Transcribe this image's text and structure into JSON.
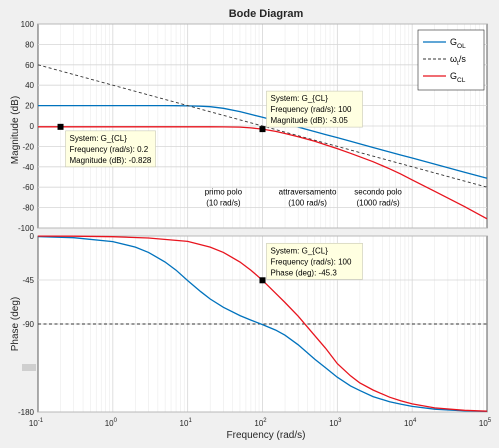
{
  "figure": {
    "title": "Bode Diagram"
  },
  "chart_data": {
    "type": "line",
    "title": "Bode Diagram",
    "xscale": "log",
    "xlabel": "Frequency  (rad/s)",
    "xlim": [
      0.1,
      100000
    ],
    "x_ticks": [
      {
        "v": 0.1,
        "base": "10",
        "exp": "-1"
      },
      {
        "v": 1,
        "base": "10",
        "exp": "0"
      },
      {
        "v": 10,
        "base": "10",
        "exp": "1"
      },
      {
        "v": 100,
        "base": "10",
        "exp": "2"
      },
      {
        "v": 1000,
        "base": "10",
        "exp": "3"
      },
      {
        "v": 10000,
        "base": "10",
        "exp": "4"
      },
      {
        "v": 100000,
        "base": "10",
        "exp": "5"
      }
    ],
    "grid": true,
    "magnitude": {
      "ylabel": "Magnitude (dB)",
      "ylim": [
        -100,
        100
      ],
      "yticks": [
        "100",
        "80",
        "60",
        "40",
        "20",
        "0",
        "-20",
        "-40",
        "-60",
        "-80",
        "-100"
      ],
      "legend": {
        "placement": "top-right",
        "entries": [
          {
            "base": "G",
            "sub": "OL",
            "sup": "",
            "tail": "",
            "color": "#0072bd",
            "dash": false
          },
          {
            "base": "ω",
            "sub": "t",
            "sup": "",
            "tail": "/s",
            "color": "#333333",
            "dash": true
          },
          {
            "base": "G",
            "sub": "CL",
            "sup": "",
            "tail": "",
            "color": "#e8141e",
            "dash": false
          }
        ]
      },
      "series": [
        {
          "name": "G_OL",
          "color": "#0072bd",
          "x": [
            0.1,
            0.3,
            1,
            2,
            3,
            5,
            7,
            10,
            15,
            20,
            30,
            50,
            70,
            100,
            150,
            200,
            300,
            500,
            700,
            1000,
            1500,
            2000,
            3000,
            5000,
            7000,
            10000,
            20000,
            50000,
            100000
          ],
          "y": [
            20,
            20,
            20,
            19.99,
            19.99,
            19.97,
            19.9,
            19.7,
            19.4,
            18.9,
            17.4,
            14.1,
            11.4,
            8.5,
            5.1,
            2.5,
            -1.1,
            -5.5,
            -8.4,
            -11.4,
            -15,
            -17.5,
            -21.1,
            -25.5,
            -28.4,
            -31.4,
            -37.4,
            -45.3,
            -51.3
          ]
        },
        {
          "name": "ω_t/s",
          "color": "#333333",
          "dash": true,
          "x": [
            0.1,
            100000
          ],
          "y": [
            60,
            -60
          ]
        },
        {
          "name": "G_CL",
          "color": "#e8141e",
          "x": [
            0.1,
            0.3,
            1,
            3,
            10,
            20,
            30,
            50,
            70,
            100,
            150,
            200,
            300,
            500,
            700,
            1000,
            1500,
            2000,
            3000,
            5000,
            7000,
            10000,
            20000,
            50000,
            100000
          ],
          "y": [
            -0.83,
            -0.83,
            -0.83,
            -0.83,
            -0.83,
            -0.83,
            -0.85,
            -1.1,
            -1.9,
            -3.05,
            -5.3,
            -7.4,
            -10.6,
            -15.0,
            -18.5,
            -22.2,
            -26.8,
            -30.2,
            -35.0,
            -42.0,
            -47.0,
            -52.8,
            -64.0,
            -79.0,
            -91.0
          ]
        }
      ],
      "markers": [
        {
          "x": 0.2,
          "y": -0.828,
          "tip": [
            "System: G_{CL}",
            "Frequency (rad/s): 0.2",
            "Magnitude (dB): -0.828"
          ]
        },
        {
          "x": 100,
          "y": -3.05,
          "tip": [
            "System: G_{CL}",
            "Frequency (rad/s): 100",
            "Magnitude (dB): -3.05"
          ]
        }
      ],
      "annotations": [
        {
          "x": 30,
          "y": -67,
          "lines": [
            "primo polo",
            "(10 rad/s)"
          ]
        },
        {
          "x": 400,
          "y": -67,
          "lines": [
            "attraversamento",
            "(100 rad/s)"
          ]
        },
        {
          "x": 3500,
          "y": -67,
          "lines": [
            "secondo polo",
            "(1000 rad/s)"
          ]
        }
      ]
    },
    "phase": {
      "ylabel": "Phase (deg)",
      "ylim": [
        -180,
        0
      ],
      "yticks": [
        "0",
        "-45",
        "-90",
        "-180"
      ],
      "series": [
        {
          "name": "G_OL",
          "color": "#0072bd",
          "x": [
            0.1,
            0.3,
            1,
            2,
            3,
            5,
            7,
            10,
            15,
            20,
            30,
            50,
            70,
            100,
            150,
            200,
            300,
            500,
            700,
            1000,
            1500,
            2000,
            3000,
            5000,
            7000,
            10000,
            20000,
            50000,
            100000
          ],
          "y": [
            -0.6,
            -1.7,
            -5.7,
            -11.4,
            -16.8,
            -26.6,
            -35,
            -45.6,
            -57,
            -64.4,
            -72.9,
            -81.4,
            -86,
            -90.6,
            -96.2,
            -101.5,
            -111.3,
            -126,
            -134.9,
            -144.4,
            -153.3,
            -158.1,
            -164.3,
            -169.6,
            -171.9,
            -174.3,
            -177.1,
            -178.9,
            -179.4
          ]
        },
        {
          "name": "G_CL",
          "color": "#e8141e",
          "x": [
            0.1,
            0.3,
            1,
            3,
            10,
            20,
            30,
            50,
            70,
            100,
            150,
            200,
            300,
            500,
            700,
            1000,
            1500,
            2000,
            3000,
            5000,
            7000,
            10000,
            20000,
            50000,
            100000
          ],
          "y": [
            -0.1,
            -0.2,
            -0.7,
            -2,
            -5.5,
            -11.4,
            -16.8,
            -26.6,
            -35,
            -45.3,
            -58.6,
            -68,
            -82,
            -102,
            -115,
            -130.5,
            -143,
            -150.3,
            -157.5,
            -164.9,
            -168.5,
            -171.7,
            -175.8,
            -178.3,
            -179.2
          ]
        }
      ],
      "markers": [
        {
          "x": 100,
          "y": -45.3,
          "tip": [
            "System: G_{CL}",
            "Frequency (rad/s): 100",
            "Phase (deg): -45.3"
          ]
        }
      ],
      "ref_line": {
        "y": -90,
        "color": "#333333",
        "dash": true
      }
    }
  }
}
